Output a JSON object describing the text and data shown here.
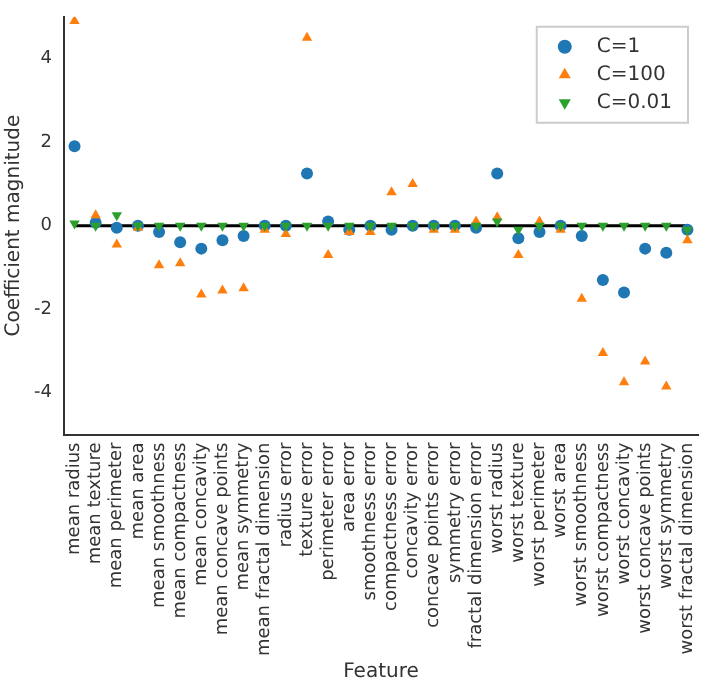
{
  "chart_data": {
    "type": "scatter",
    "xlabel": "Feature",
    "ylabel": "Coefficient magnitude",
    "categories": [
      "mean radius",
      "mean texture",
      "mean perimeter",
      "mean area",
      "mean smoothness",
      "mean compactness",
      "mean concavity",
      "mean concave points",
      "mean symmetry",
      "mean fractal dimension",
      "radius error",
      "texture error",
      "perimeter error",
      "area error",
      "smoothness error",
      "compactness error",
      "concavity error",
      "concave points error",
      "symmetry error",
      "fractal dimension error",
      "worst radius",
      "worst texture",
      "worst perimeter",
      "worst area",
      "worst smoothness",
      "worst compactness",
      "worst concavity",
      "worst concave points",
      "worst symmetry",
      "worst fractal dimension"
    ],
    "series": [
      {
        "name": "C=1",
        "color": "#1f77b4",
        "marker": "circle",
        "values": [
          1.9,
          0.07,
          -0.05,
          0.0,
          -0.15,
          -0.4,
          -0.55,
          -0.35,
          -0.25,
          0.0,
          0.0,
          1.25,
          0.1,
          -0.1,
          0.0,
          -0.1,
          0.0,
          0.0,
          0.0,
          -0.05,
          1.25,
          -0.3,
          -0.15,
          0.0,
          -0.25,
          -1.3,
          -1.6,
          -0.55,
          -0.65,
          -0.1
        ]
      },
      {
        "name": "C=100",
        "color": "#ff7f0e",
        "marker": "triangle",
        "values": [
          4.9,
          0.25,
          -0.45,
          -0.05,
          -0.95,
          -0.9,
          -1.65,
          -1.55,
          -1.5,
          -0.1,
          -0.2,
          4.5,
          -0.7,
          -0.15,
          -0.15,
          0.8,
          1.0,
          -0.1,
          -0.1,
          0.1,
          0.2,
          -0.7,
          0.1,
          -0.1,
          -1.75,
          -3.05,
          -3.75,
          -3.25,
          -3.85,
          -0.35
        ]
      },
      {
        "name": "C=0.01",
        "color": "#2ca02c",
        "marker": "triangle-down",
        "values": [
          0.05,
          0.0,
          0.25,
          0.0,
          0.0,
          0.0,
          0.0,
          0.0,
          0.0,
          0.0,
          0.0,
          0.0,
          0.0,
          0.0,
          0.0,
          0.0,
          0.0,
          0.0,
          0.0,
          0.0,
          0.1,
          -0.1,
          0.0,
          0.0,
          0.0,
          0.0,
          0.0,
          0.0,
          0.0,
          -0.1
        ]
      }
    ],
    "ylim": [
      -5,
      5
    ],
    "yticks": [
      -4,
      -2,
      0,
      2,
      4
    ],
    "ref_lines": [
      {
        "axis": "y",
        "value": 0,
        "color": "#000000"
      }
    ],
    "grid": false,
    "legend": "top right"
  }
}
